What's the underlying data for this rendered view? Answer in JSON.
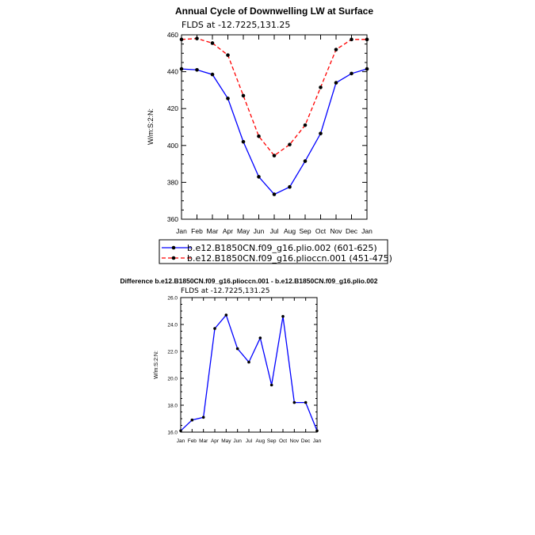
{
  "chart_data": [
    {
      "type": "line",
      "title": "Annual Cycle of Downwelling LW at Surface",
      "subtitle": "FLDS at  -12.7225,131.25",
      "xlabel": "",
      "ylabel": "W/m:S:2:N:",
      "categories": [
        "Jan",
        "Feb",
        "Mar",
        "Apr",
        "May",
        "Jun",
        "Jul",
        "Aug",
        "Sep",
        "Oct",
        "Nov",
        "Dec",
        "Jan"
      ],
      "ylim": [
        360,
        460
      ],
      "yticks": [
        "360",
        "380",
        "400",
        "420",
        "440",
        "460"
      ],
      "series": [
        {
          "name": "b.e12.B1850CN.f09_g16.plio.002 (601-625)",
          "color": "#0000ff",
          "dash": "solid",
          "values": [
            441.5,
            441,
            438.5,
            425.5,
            402,
            383,
            373.5,
            377.5,
            391.5,
            406.5,
            434,
            439,
            441.5
          ]
        },
        {
          "name": "b.e12.B1850CN.f09_g16.plioccn.001 (451-475)",
          "color": "#ff0000",
          "dash": "dashed",
          "values": [
            457.5,
            458,
            455.5,
            449,
            427,
            405,
            394.5,
            400.5,
            411,
            431.5,
            452,
            457.5,
            457.5
          ]
        }
      ],
      "legend_position": "bottom"
    },
    {
      "type": "line",
      "title": "Difference b.e12.B1850CN.f09_g16.plioccn.001 - b.e12.B1850CN.f09_g16.plio.002",
      "subtitle": "FLDS at  -12.7225,131.25",
      "xlabel": "",
      "ylabel": "W/m:S:2:N:",
      "categories": [
        "Jan",
        "Feb",
        "Mar",
        "Apr",
        "May",
        "Jun",
        "Jul",
        "Aug",
        "Sep",
        "Oct",
        "Nov",
        "Dec",
        "Jan"
      ],
      "ylim": [
        16,
        26
      ],
      "yticks": [
        "16.0",
        "18.0",
        "20.0",
        "22.0",
        "24.0",
        "26.0"
      ],
      "series": [
        {
          "color": "#0000ff",
          "dash": "solid",
          "values": [
            16.1,
            16.9,
            17.1,
            23.7,
            24.7,
            22.2,
            21.2,
            23.0,
            19.5,
            24.6,
            18.2,
            18.2,
            16.1
          ]
        }
      ]
    }
  ]
}
